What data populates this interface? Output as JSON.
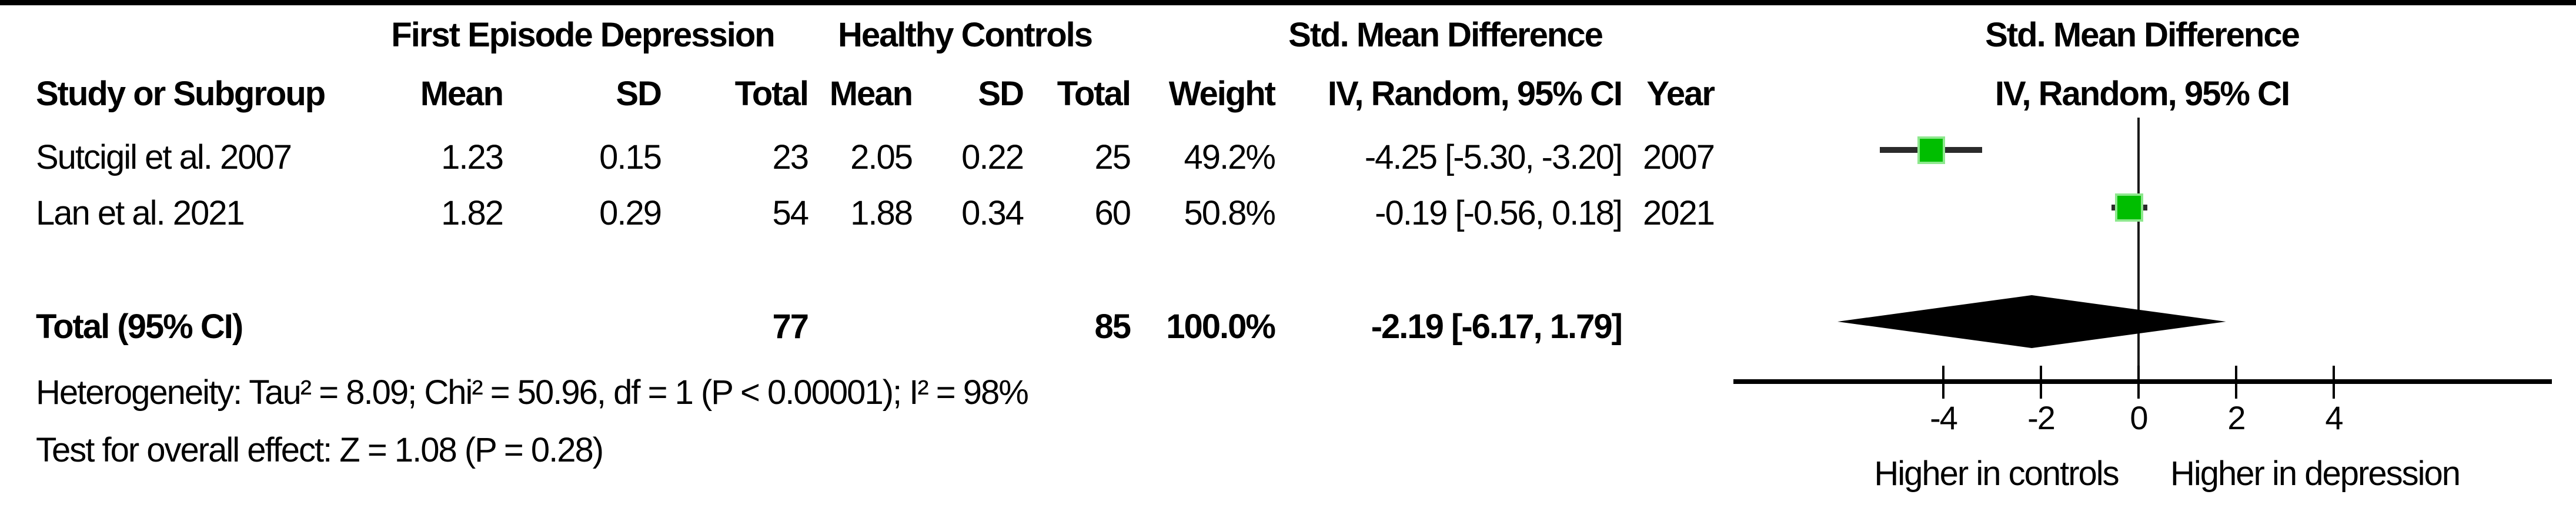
{
  "header": {
    "group1": "First Episode Depression",
    "group2": "Healthy Controls",
    "smd": "Std. Mean Difference",
    "plot_line1": "Std. Mean Difference",
    "plot_line2": "IV, Random, 95% CI",
    "cols": {
      "study": "Study or Subgroup",
      "mean": "Mean",
      "sd": "SD",
      "total": "Total",
      "weight": "Weight",
      "iv": "IV, Random, 95% CI",
      "year": "Year"
    }
  },
  "rows": [
    {
      "study": "Sutcigil et al. 2007",
      "mean1": "1.23",
      "sd1": "0.15",
      "total1": "23",
      "mean2": "2.05",
      "sd2": "0.22",
      "total2": "25",
      "weight": "49.2%",
      "ci": "-4.25 [-5.30, -3.20]",
      "year": "2007"
    },
    {
      "study": "Lan et al. 2021",
      "mean1": "1.82",
      "sd1": "0.29",
      "total1": "54",
      "mean2": "1.88",
      "sd2": "0.34",
      "total2": "60",
      "weight": "50.8%",
      "ci": "-0.19 [-0.56, 0.18]",
      "year": "2021"
    }
  ],
  "total_row": {
    "label": "Total (95% CI)",
    "total1": "77",
    "total2": "85",
    "weight": "100.0%",
    "ci": "-2.19 [-6.17, 1.79]"
  },
  "footer": {
    "heterogeneity": "Heterogeneity: Tau² = 8.09; Chi² = 50.96, df = 1 (P < 0.00001); I² = 98%",
    "overall": "Test for overall effect: Z = 1.08 (P = 0.28)"
  },
  "plot": {
    "label_left": "Higher in controls",
    "label_right": "Higher in depression"
  },
  "colors": {
    "marker": "#00be00",
    "marker_border": "#8ee88e",
    "ci_line": "#2b2b2b",
    "diamond": "#000000"
  },
  "chart_data": {
    "type": "forest",
    "title": "Std. Mean Difference, IV, Random, 95% CI",
    "groups": [
      "First Episode Depression",
      "Healthy Controls"
    ],
    "studies": [
      {
        "name": "Sutcigil et al. 2007",
        "year": 2007,
        "exp_mean": 1.23,
        "exp_sd": 0.15,
        "exp_total": 23,
        "ctl_mean": 2.05,
        "ctl_sd": 0.22,
        "ctl_total": 25,
        "weight_pct": 49.2,
        "effect": -4.25,
        "ci_low": -5.3,
        "ci_high": -3.2
      },
      {
        "name": "Lan et al. 2021",
        "year": 2021,
        "exp_mean": 1.82,
        "exp_sd": 0.29,
        "exp_total": 54,
        "ctl_mean": 1.88,
        "ctl_sd": 0.34,
        "ctl_total": 60,
        "weight_pct": 50.8,
        "effect": -0.19,
        "ci_low": -0.56,
        "ci_high": 0.18
      }
    ],
    "total": {
      "exp_total": 77,
      "ctl_total": 85,
      "weight_pct": 100.0,
      "effect": -2.19,
      "ci_low": -6.17,
      "ci_high": 1.79
    },
    "heterogeneity": {
      "tau2": 8.09,
      "chi2": 50.96,
      "df": 1,
      "p": "< 0.00001",
      "i2_pct": 98
    },
    "overall_effect": {
      "z": 1.08,
      "p": 0.28
    },
    "axis": {
      "ticks": [
        -4,
        -2,
        0,
        2,
        4
      ],
      "range": [
        -8.3,
        8.5
      ]
    },
    "xlabel_left": "Higher in controls",
    "xlabel_right": "Higher in depression",
    "legend_position": "none",
    "grid": false
  }
}
